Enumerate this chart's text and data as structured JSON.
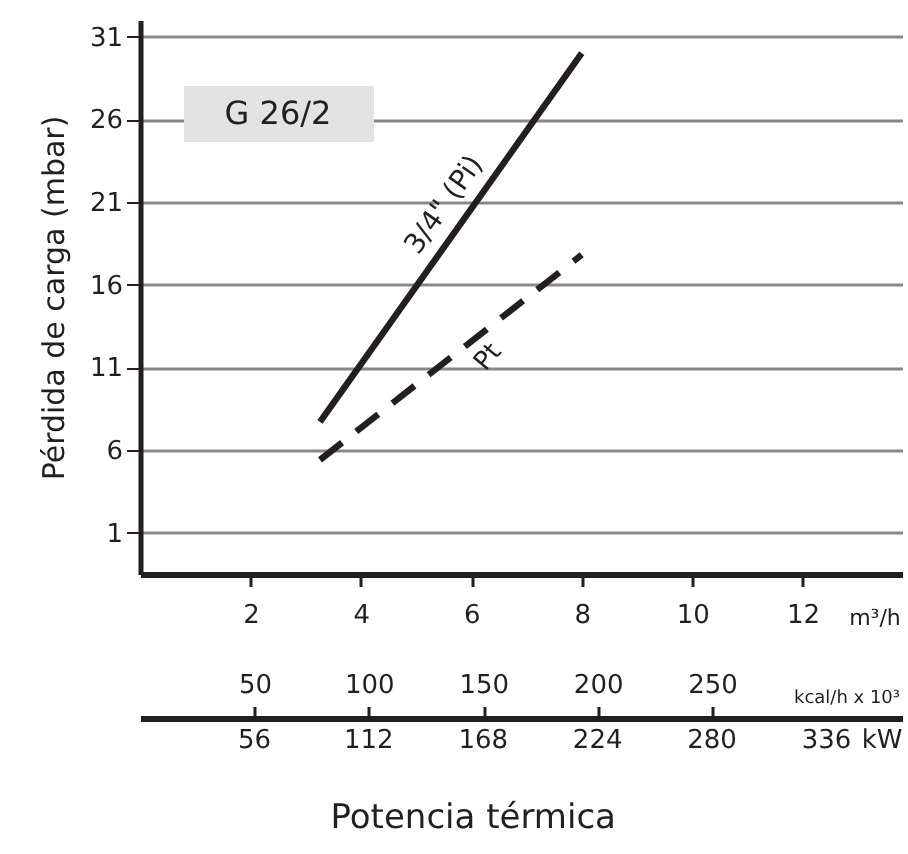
{
  "chart_data": {
    "type": "line",
    "ylabel": "Pérdida de carga (mbar)",
    "xlabel": "m³/h",
    "x2label": "kcal/h x 10³",
    "annotations": [
      "G 26/2",
      "Potencia térmica",
      "56",
      "112",
      "168",
      "224",
      "280",
      "336",
      "kW"
    ],
    "xlim": [
      0,
      13.8
    ],
    "xticks": [
      2,
      4,
      6,
      8,
      10,
      12
    ],
    "ylim": [
      -1.5,
      32
    ],
    "yticks": [
      1,
      6,
      11,
      16,
      21,
      26,
      31
    ],
    "x2lim": [
      0,
      333
    ],
    "x2ticks": [
      50,
      100,
      150,
      200,
      250
    ],
    "grid": "y",
    "x": [
      3.26,
      8
    ],
    "series": [
      {
        "name": "3/4\" (Pi)",
        "color": "#231f20",
        "line_style": "solid",
        "values": [
          7.7,
          30.0
        ]
      },
      {
        "name": "Pt",
        "color": "#231f20",
        "line_style": "dashed",
        "values": [
          5.4,
          17.8
        ]
      }
    ]
  }
}
